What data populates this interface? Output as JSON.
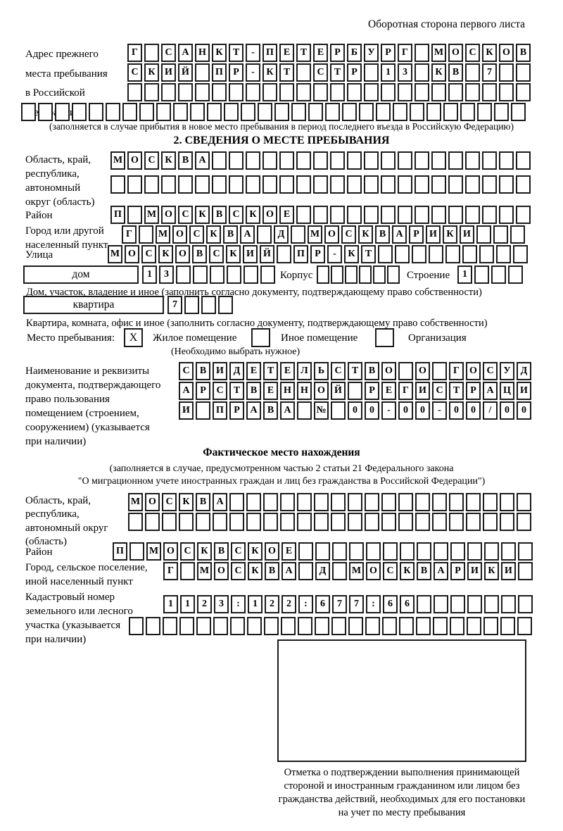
{
  "page": {
    "header_note": "Оборотная сторона первого листа"
  },
  "prev_address": {
    "label_lines": [
      "Адрес прежнего",
      "места пребывания",
      "в Российской",
      "Федерации"
    ],
    "rows": [
      {
        "cells": "Г САНКТ-ПЕТЕРБУРГ МОСКОВ",
        "count": 24
      },
      {
        "cells": "СКИЙ ПР-КТ СТР 13 КВ 7",
        "count": 24
      },
      {
        "cells": "",
        "count": 24
      },
      {
        "cells": "",
        "count": 30
      }
    ],
    "note": "(заполняется в случае прибытия в новое место пребывания в период последнего въезда в Российскую Федерацию)"
  },
  "section2": {
    "title": "2. СВЕДЕНИЯ О МЕСТЕ ПРЕБЫВАНИЯ",
    "region": {
      "label_lines": [
        "Область, край,",
        "республика,",
        "автономный",
        "округ (область)"
      ],
      "rows": [
        {
          "cells": "МОСКВА",
          "count": 25
        },
        {
          "cells": "",
          "count": 25
        }
      ]
    },
    "district": {
      "label": "Район",
      "row": {
        "cells": "П МОСКВСКОЕ",
        "count": 25
      }
    },
    "city": {
      "label_lines": [
        "Город или другой",
        "населенный пункт"
      ],
      "row": {
        "cells": "Г МОСКВА Д МОСКВАРИКИ",
        "count": 24
      }
    },
    "street": {
      "label": "Улица",
      "row": {
        "cells": "МОСКОВСКИЙ ПР-КТ",
        "count": 25
      }
    },
    "house": {
      "field_label": "дом",
      "number": {
        "cells": "13",
        "count": 8
      },
      "korpus_label": "Корпус",
      "korpus": {
        "cells": "",
        "count": 6
      },
      "stroenie_label": "Строение",
      "stroenie": {
        "cells": "1",
        "count": 4
      },
      "caption": "Дом, участок, владение и иное (заполнить согласно документу, подтверждающему право собственности)"
    },
    "apartment": {
      "field_label": "квартира",
      "number": {
        "cells": "7",
        "count": 4
      },
      "caption": "Квартира, комната, офис и иное (заполнить согласно документу, подтверждающему право собственности)"
    },
    "stay_type": {
      "label": "Место пребывания:",
      "options": [
        {
          "label": "Жилое помещение",
          "checked": "X"
        },
        {
          "label": "Иное помещение",
          "checked": ""
        },
        {
          "label": "Организация",
          "checked": ""
        }
      ],
      "note": "(Необходимо выбрать нужное)"
    },
    "doc": {
      "label_lines": [
        "Наименование и реквизиты",
        "документа, подтверждающего",
        "право пользования",
        "помещением (строением,",
        "сооружением) (указывается",
        "при наличии)"
      ],
      "rows": [
        {
          "cells": "СВИДЕТЕЛЬСТВО О ГОСУД",
          "count": 21
        },
        {
          "cells": "АРСТВЕННОЙ РЕГИСТРАЦИ",
          "count": 21
        },
        {
          "cells": "И ПРАВА № 00-00-00/000",
          "count": 21
        }
      ]
    }
  },
  "actual_location": {
    "title": "Фактическое место нахождения",
    "note_lines": [
      "(заполняется в случае, предусмотренном частью 2 статьи 21 Федерального закона",
      "\"О миграционном учете иностранных граждан и лиц без гражданства в Российской Федерации\")"
    ],
    "region": {
      "label_lines": [
        "Область, край,",
        "республика,",
        "автономный округ",
        "(область)"
      ],
      "rows": [
        {
          "cells": "МОСКВА",
          "count": 24
        },
        {
          "cells": "",
          "count": 24
        }
      ]
    },
    "district": {
      "label": "Район",
      "row": {
        "cells": "П МОСКВСКОЕ",
        "count": 25
      }
    },
    "city": {
      "label_lines": [
        "Город, сельское поселение,",
        "иной населенный пункт"
      ],
      "row": {
        "cells": "Г МОСКВА Д МОСКВАРИКИ",
        "count": 22
      }
    },
    "cadastral": {
      "label_lines": [
        "Кадастровый номер",
        "земельного или лесного",
        "участка (указывается",
        "при наличии)"
      ],
      "rows": [
        {
          "cells": "1123:122:677:66",
          "count": 22
        },
        {
          "cells": "",
          "count": 24
        }
      ]
    },
    "stamp_caption_lines": [
      "Отметка о подтверждении выполнения принимающей",
      "стороной и иностранным гражданином или лицом без",
      "гражданства действий, необходимых для его постановки",
      "на учет по месту пребывания"
    ]
  }
}
